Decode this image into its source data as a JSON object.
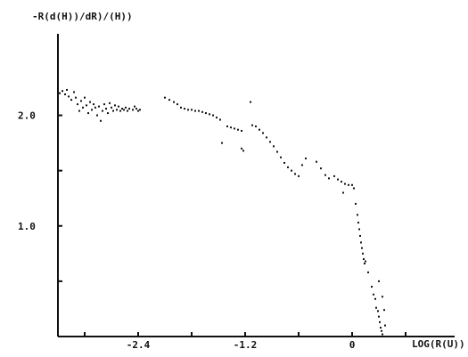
{
  "chart_data": {
    "type": "scatter",
    "title": "",
    "ylabel": "-R(d(H))/dR)/(H))",
    "xlabel": "LOG(R(U))",
    "xlim": [
      -3.3,
      1.0
    ],
    "ylim": [
      0.0,
      2.6
    ],
    "grid": false,
    "x_ticks": [
      -3.0,
      -2.4,
      -1.8,
      -1.2,
      -0.6,
      0.0,
      0.6
    ],
    "x_tick_labels": [
      "",
      "-2.4",
      "",
      "-1.2",
      "",
      "0",
      ""
    ],
    "y_ticks": [
      0.5,
      1.0,
      1.5,
      2.0
    ],
    "y_tick_labels": [
      "",
      "1.0",
      "",
      "2.0"
    ],
    "series": [
      {
        "values": [
          [
            -3.28,
            2.2
          ],
          [
            -3.25,
            2.22
          ],
          [
            -3.22,
            2.19
          ],
          [
            -3.2,
            2.23
          ],
          [
            -3.18,
            2.17
          ],
          [
            -3.15,
            2.14
          ],
          [
            -3.12,
            2.21
          ],
          [
            -3.1,
            2.16
          ],
          [
            -3.08,
            2.1
          ],
          [
            -3.06,
            2.04
          ],
          [
            -3.04,
            2.13
          ],
          [
            -3.02,
            2.07
          ],
          [
            -3.0,
            2.16
          ],
          [
            -2.98,
            2.09
          ],
          [
            -2.96,
            2.02
          ],
          [
            -2.94,
            2.12
          ],
          [
            -2.92,
            2.05
          ],
          [
            -2.9,
            2.1
          ],
          [
            -2.88,
            2.07
          ],
          [
            -2.86,
            2.0
          ],
          [
            -2.84,
            2.08
          ],
          [
            -2.82,
            1.95
          ],
          [
            -2.8,
            2.04
          ],
          [
            -2.78,
            2.1
          ],
          [
            -2.76,
            2.06
          ],
          [
            -2.74,
            2.02
          ],
          [
            -2.72,
            2.11
          ],
          [
            -2.7,
            2.07
          ],
          [
            -2.68,
            2.04
          ],
          [
            -2.66,
            2.09
          ],
          [
            -2.64,
            2.05
          ],
          [
            -2.62,
            2.08
          ],
          [
            -2.6,
            2.04
          ],
          [
            -2.58,
            2.06
          ],
          [
            -2.56,
            2.05
          ],
          [
            -2.54,
            2.07
          ],
          [
            -2.52,
            2.04
          ],
          [
            -2.5,
            2.06
          ],
          [
            -2.46,
            2.05
          ],
          [
            -2.44,
            2.08
          ],
          [
            -2.42,
            2.06
          ],
          [
            -2.4,
            2.04
          ],
          [
            -2.38,
            2.05
          ],
          [
            -2.1,
            2.16
          ],
          [
            -2.05,
            2.14
          ],
          [
            -2.0,
            2.12
          ],
          [
            -1.96,
            2.1
          ],
          [
            -1.92,
            2.07
          ],
          [
            -1.88,
            2.06
          ],
          [
            -1.84,
            2.05
          ],
          [
            -1.8,
            2.05
          ],
          [
            -1.76,
            2.04
          ],
          [
            -1.72,
            2.04
          ],
          [
            -1.68,
            2.03
          ],
          [
            -1.64,
            2.02
          ],
          [
            -1.6,
            2.01
          ],
          [
            -1.56,
            2.0
          ],
          [
            -1.52,
            1.98
          ],
          [
            -1.48,
            1.96
          ],
          [
            -1.4,
            1.9
          ],
          [
            -1.36,
            1.89
          ],
          [
            -1.32,
            1.88
          ],
          [
            -1.28,
            1.87
          ],
          [
            -1.24,
            1.86
          ],
          [
            -1.46,
            1.75
          ],
          [
            -1.24,
            1.7
          ],
          [
            -1.22,
            1.68
          ],
          [
            -1.14,
            2.12
          ],
          [
            -1.12,
            1.91
          ],
          [
            -1.08,
            1.9
          ],
          [
            -1.04,
            1.87
          ],
          [
            -1.0,
            1.84
          ],
          [
            -0.96,
            1.8
          ],
          [
            -0.92,
            1.76
          ],
          [
            -0.88,
            1.72
          ],
          [
            -0.84,
            1.67
          ],
          [
            -0.8,
            1.62
          ],
          [
            -0.76,
            1.57
          ],
          [
            -0.72,
            1.53
          ],
          [
            -0.68,
            1.5
          ],
          [
            -0.64,
            1.47
          ],
          [
            -0.6,
            1.45
          ],
          [
            -0.56,
            1.55
          ],
          [
            -0.52,
            1.61
          ],
          [
            -0.4,
            1.58
          ],
          [
            -0.35,
            1.52
          ],
          [
            -0.3,
            1.46
          ],
          [
            -0.26,
            1.43
          ],
          [
            -0.2,
            1.45
          ],
          [
            -0.16,
            1.42
          ],
          [
            -0.12,
            1.4
          ],
          [
            -0.08,
            1.38
          ],
          [
            -0.04,
            1.37
          ],
          [
            0.0,
            1.37
          ],
          [
            -0.1,
            1.3
          ],
          [
            0.02,
            1.34
          ],
          [
            0.04,
            1.2
          ],
          [
            0.06,
            1.1
          ],
          [
            0.07,
            1.03
          ],
          [
            0.08,
            0.97
          ],
          [
            0.09,
            0.91
          ],
          [
            0.1,
            0.85
          ],
          [
            0.11,
            0.8
          ],
          [
            0.12,
            0.75
          ],
          [
            0.13,
            0.7
          ],
          [
            0.14,
            0.66
          ],
          [
            0.15,
            0.68
          ],
          [
            0.18,
            0.58
          ],
          [
            0.22,
            0.45
          ],
          [
            0.24,
            0.38
          ],
          [
            0.26,
            0.34
          ],
          [
            0.27,
            0.26
          ],
          [
            0.29,
            0.23
          ],
          [
            0.3,
            0.18
          ],
          [
            0.31,
            0.13
          ],
          [
            0.32,
            0.08
          ],
          [
            0.33,
            0.05
          ],
          [
            0.34,
            0.02
          ],
          [
            0.3,
            0.5
          ],
          [
            0.34,
            0.36
          ],
          [
            0.36,
            0.24
          ],
          [
            0.37,
            0.1
          ]
        ]
      }
    ]
  }
}
